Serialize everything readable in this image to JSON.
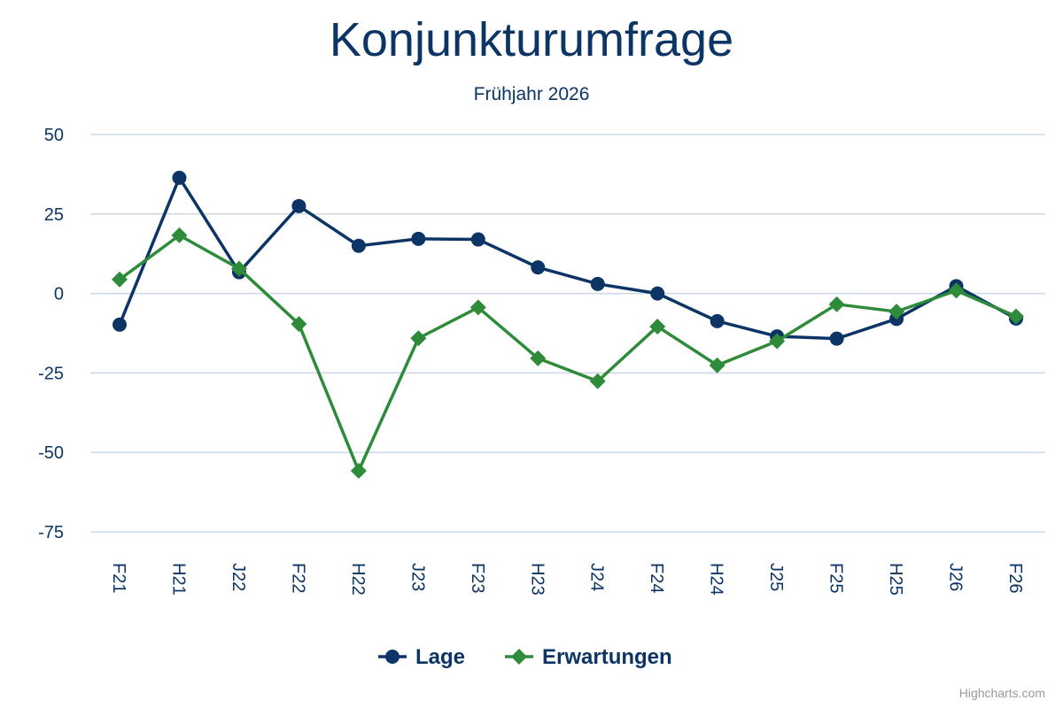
{
  "colors": {
    "lage": "#0c3566",
    "erwartungen": "#2e8b3a",
    "grid": "#cdd8e6",
    "text": "#0c3566",
    "credit": "#999999"
  },
  "chart_data": {
    "type": "line",
    "title": "Konjunkturumfrage",
    "subtitle": "Frühjahr 2026",
    "xlabel": "",
    "ylabel": "",
    "categories": [
      "F21",
      "H21",
      "J22",
      "F22",
      "H22",
      "J23",
      "F23",
      "H23",
      "J24",
      "F24",
      "H24",
      "J25",
      "F25",
      "H25",
      "J26",
      "F26"
    ],
    "ylim": [
      -75,
      50
    ],
    "yticks": [
      50,
      25,
      0,
      -25,
      -50,
      -75
    ],
    "grid": true,
    "legend": "bottom-center",
    "series": [
      {
        "name": "Lage",
        "marker": "circle",
        "color": "#0c3566",
        "values": [
          -9.8,
          36.4,
          6.7,
          27.5,
          15.0,
          17.2,
          17.0,
          8.2,
          3.0,
          0.0,
          -8.7,
          -13.5,
          -14.2,
          -8.0,
          2.3,
          -7.9
        ]
      },
      {
        "name": "Erwartungen",
        "marker": "diamond",
        "color": "#2e8b3a",
        "values": [
          4.4,
          18.3,
          7.8,
          -9.6,
          -55.8,
          -14.1,
          -4.4,
          -20.4,
          -27.6,
          -10.4,
          -22.6,
          -15.0,
          -3.4,
          -5.7,
          0.9,
          -7.2
        ]
      }
    ]
  },
  "credit": "Highcharts.com"
}
